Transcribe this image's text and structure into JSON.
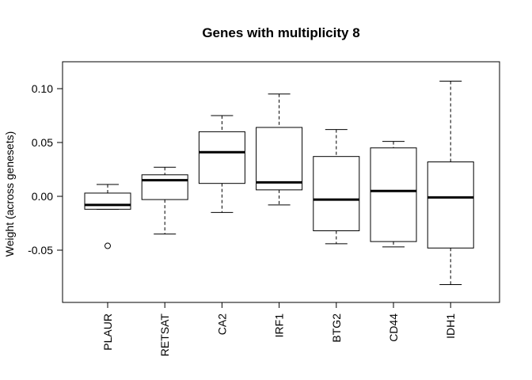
{
  "chart_data": {
    "type": "box",
    "title": "Genes with multiplicity 8",
    "xlabel": "",
    "ylabel": "Weight (across genesets)",
    "ylim": [
      -0.1,
      0.125
    ],
    "yticks": [
      0.1,
      0.05,
      0.0,
      -0.05
    ],
    "ytick_labels": [
      "0.10",
      "0.05",
      "0.00",
      "-0.05"
    ],
    "categories": [
      "PLAUR",
      "RETSAT",
      "CA2",
      "IRF1",
      "BTG2",
      "CD44",
      "IDH1"
    ],
    "boxes": [
      {
        "name": "PLAUR",
        "whisker_low": -0.012,
        "q1": -0.012,
        "median": -0.008,
        "q3": 0.003,
        "whisker_high": 0.011,
        "outliers": [
          -0.046
        ]
      },
      {
        "name": "RETSAT",
        "whisker_low": -0.035,
        "q1": -0.003,
        "median": 0.015,
        "q3": 0.02,
        "whisker_high": 0.027,
        "outliers": []
      },
      {
        "name": "CA2",
        "whisker_low": -0.015,
        "q1": 0.012,
        "median": 0.041,
        "q3": 0.06,
        "whisker_high": 0.075,
        "outliers": []
      },
      {
        "name": "IRF1",
        "whisker_low": -0.008,
        "q1": 0.006,
        "median": 0.013,
        "q3": 0.064,
        "whisker_high": 0.095,
        "outliers": []
      },
      {
        "name": "BTG2",
        "whisker_low": -0.044,
        "q1": -0.032,
        "median": -0.003,
        "q3": 0.037,
        "whisker_high": 0.062,
        "outliers": []
      },
      {
        "name": "CD44",
        "whisker_low": -0.047,
        "q1": -0.042,
        "median": 0.005,
        "q3": 0.045,
        "whisker_high": 0.051,
        "outliers": []
      },
      {
        "name": "IDH1",
        "whisker_low": -0.082,
        "q1": -0.048,
        "median": -0.001,
        "q3": 0.032,
        "whisker_high": 0.107,
        "outliers": []
      }
    ],
    "grid": false,
    "legend": "none"
  },
  "colors": {
    "box_stroke": "#000000",
    "box_fill": "#ffffff",
    "background": "#ffffff"
  }
}
